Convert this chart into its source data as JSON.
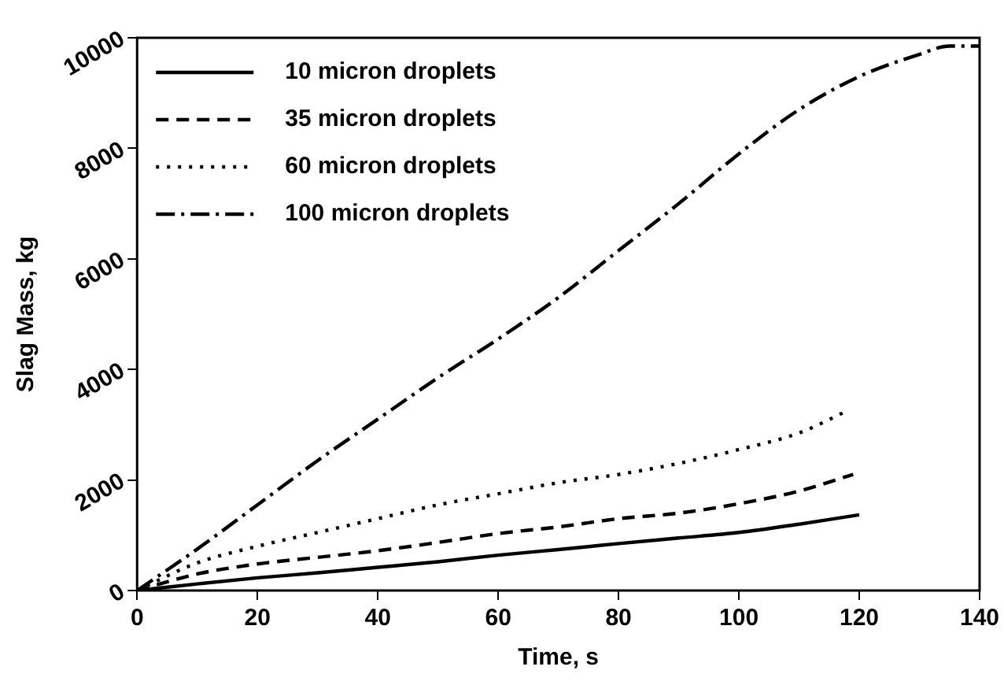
{
  "chart_data": {
    "type": "line",
    "xlabel": "Time, s",
    "ylabel": "Slag Mass, kg",
    "xlim": [
      0,
      140
    ],
    "xticks": [
      0,
      20,
      40,
      60,
      80,
      100,
      120,
      140
    ],
    "ylim": [
      0,
      10000
    ],
    "yticks": [
      0,
      2000,
      4000,
      6000,
      8000,
      10000
    ],
    "grid": false,
    "legend": "top left",
    "marker": "none",
    "series": [
      {
        "name": "10 micron droplets",
        "color": "#000000",
        "line_style": "solid",
        "x": [
          0,
          10,
          20,
          30,
          40,
          50,
          60,
          70,
          80,
          90,
          100,
          110,
          120
        ],
        "values": [
          0,
          120,
          230,
          320,
          420,
          520,
          640,
          740,
          850,
          950,
          1050,
          1200,
          1370
        ]
      },
      {
        "name": "35 micron droplets",
        "color": "#000000",
        "line_style": "dashed",
        "x": [
          0,
          10,
          20,
          30,
          40,
          50,
          60,
          70,
          80,
          90,
          100,
          110,
          119
        ],
        "values": [
          0,
          300,
          480,
          600,
          720,
          870,
          1030,
          1150,
          1300,
          1400,
          1570,
          1800,
          2100
        ]
      },
      {
        "name": "60 micron droplets",
        "color": "#000000",
        "line_style": "dotted",
        "x": [
          0,
          10,
          20,
          30,
          40,
          50,
          60,
          70,
          80,
          90,
          100,
          110,
          118
        ],
        "values": [
          0,
          500,
          800,
          1050,
          1300,
          1550,
          1750,
          1950,
          2100,
          2300,
          2550,
          2850,
          3250
        ]
      },
      {
        "name": "100 micron droplets",
        "color": "#000000",
        "line_style": "dashdot",
        "x": [
          0,
          10,
          20,
          30,
          40,
          50,
          60,
          70,
          80,
          90,
          100,
          110,
          120,
          130,
          135,
          140
        ],
        "values": [
          0,
          750,
          1550,
          2350,
          3100,
          3850,
          4550,
          5300,
          6150,
          7000,
          7900,
          8700,
          9300,
          9700,
          9850,
          9850
        ]
      }
    ]
  }
}
